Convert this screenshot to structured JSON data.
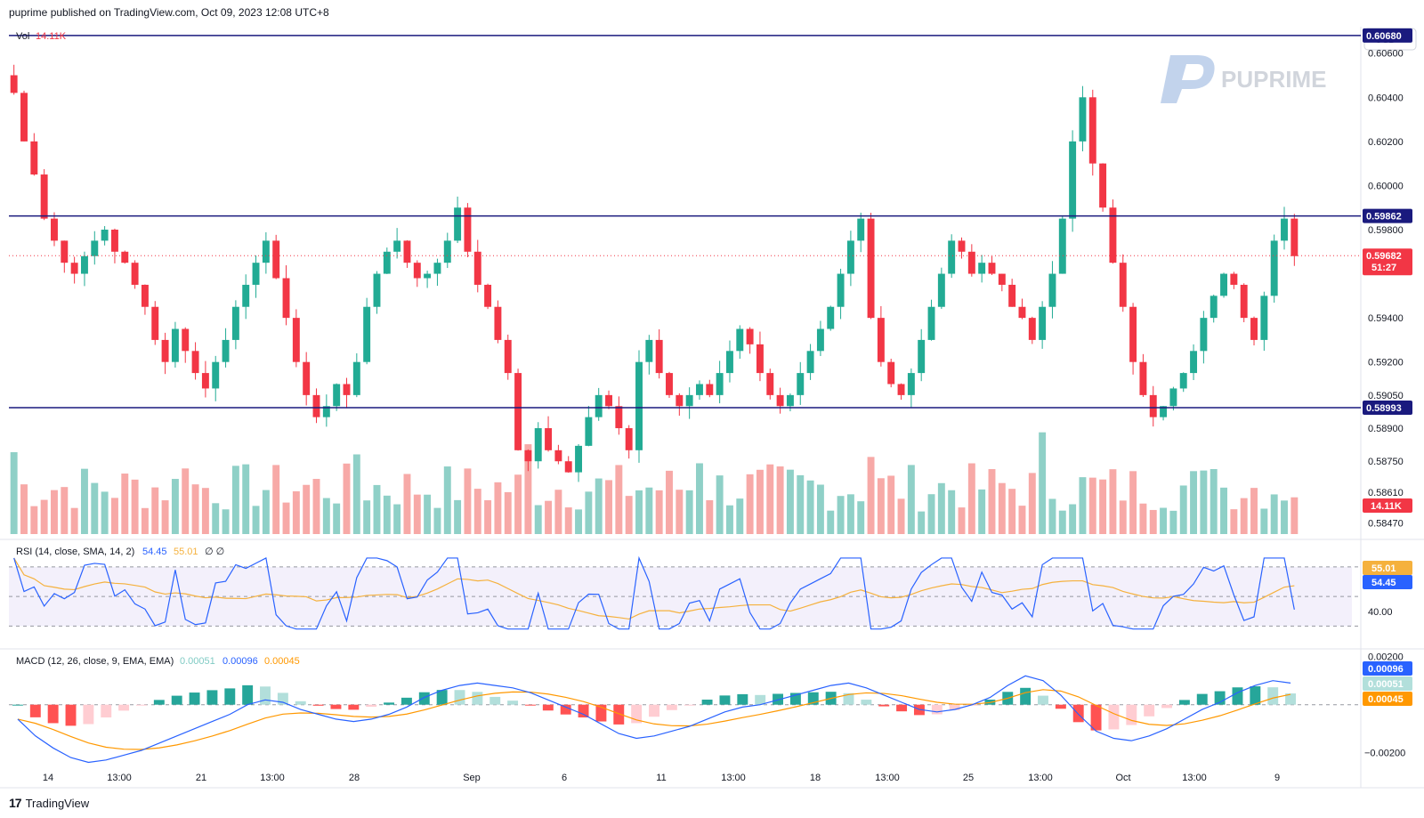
{
  "header": {
    "published_text": "puprime published on TradingView.com, Oct 09, 2023 12:08 UTC+8"
  },
  "footer": {
    "brand": "TradingView"
  },
  "watermark": {
    "text": "PUPRIME"
  },
  "currency": "USD",
  "colors": {
    "up": "#22ab94",
    "down": "#f23645",
    "up_vol": "#8fd0c7",
    "down_vol": "#f7a9a7",
    "hline": "#1a1a7e",
    "rsi": "#2962ff",
    "rsi_ma": "#f5b13d",
    "macd": "#2962ff",
    "signal": "#ff9800",
    "rsi_band": "#f3f0fb"
  },
  "chart_data": {
    "type": "candlestick",
    "title": "",
    "legend": {
      "vol_label": "Vol",
      "vol_value": "14.11K",
      "rsi_label": "RSI (14, close, SMA, 14, 2)",
      "rsi_value": "54.45",
      "rsi_ma_value": "55.01",
      "rsi_extra": "∅ ∅",
      "macd_label": "MACD (12, 26, close, 9, EMA, EMA)",
      "macd_hist_value": "0.00051",
      "macd_value": "0.00096",
      "signal_value": "0.00045"
    },
    "price_axis": {
      "ticks": [
        "0.60600",
        "0.60400",
        "0.60200",
        "0.60000",
        "0.59800",
        "0.59400",
        "0.59200",
        "0.59050",
        "0.58900",
        "0.58750",
        "0.58610",
        "0.58470"
      ],
      "ylim": [
        0.5842,
        0.6072
      ]
    },
    "horizontal_lines": [
      {
        "label": "0.60680",
        "value": 0.6068
      },
      {
        "label": "0.59862",
        "value": 0.59862
      },
      {
        "label": "0.58993",
        "value": 0.58993
      }
    ],
    "last_price": {
      "label": "0.59682",
      "countdown": "51:27",
      "value": 0.59682
    },
    "volume_tag": "14.11K",
    "rsi_axis": {
      "ticks": [
        "40.00"
      ],
      "ylim": [
        20,
        85
      ],
      "bands": [
        30,
        50,
        70
      ]
    },
    "rsi_tags": {
      "ma": "55.01",
      "rsi": "54.45"
    },
    "macd_axis": {
      "ticks": [
        "0.00200",
        "−0.00200"
      ],
      "ylim": [
        -0.0029,
        0.0021
      ]
    },
    "macd_tags": {
      "macd": "0.00096",
      "hist": "0.00051",
      "signal": "0.00045"
    },
    "time_axis": [
      "14",
      "13:00",
      "21",
      "13:00",
      "28",
      "Sep",
      "6",
      "11",
      "13:00",
      "18",
      "13:00",
      "25",
      "13:00",
      "Oct",
      "13:00",
      "9"
    ],
    "close_series": [
      0.6042,
      0.602,
      0.6005,
      0.5985,
      0.5975,
      0.5965,
      0.596,
      0.5968,
      0.5975,
      0.598,
      0.597,
      0.5965,
      0.5955,
      0.5945,
      0.593,
      0.592,
      0.5935,
      0.5925,
      0.5915,
      0.5908,
      0.592,
      0.593,
      0.5945,
      0.5955,
      0.5965,
      0.5975,
      0.5958,
      0.594,
      0.592,
      0.5905,
      0.5895,
      0.59,
      0.591,
      0.5905,
      0.592,
      0.5945,
      0.596,
      0.597,
      0.5975,
      0.5965,
      0.5958,
      0.596,
      0.5965,
      0.5975,
      0.599,
      0.597,
      0.5955,
      0.5945,
      0.593,
      0.5915,
      0.588,
      0.5875,
      0.589,
      0.588,
      0.5875,
      0.587,
      0.5882,
      0.5895,
      0.5905,
      0.59,
      0.589,
      0.588,
      0.592,
      0.593,
      0.5915,
      0.5905,
      0.59,
      0.5905,
      0.591,
      0.5905,
      0.5915,
      0.5925,
      0.5935,
      0.5928,
      0.5915,
      0.5905,
      0.59,
      0.5905,
      0.5915,
      0.5925,
      0.5935,
      0.5945,
      0.596,
      0.5975,
      0.5985,
      0.594,
      0.592,
      0.591,
      0.5905,
      0.5915,
      0.593,
      0.5945,
      0.596,
      0.5975,
      0.597,
      0.596,
      0.5965,
      0.596,
      0.5955,
      0.5945,
      0.594,
      0.593,
      0.5945,
      0.596,
      0.5985,
      0.602,
      0.604,
      0.601,
      0.599,
      0.5965,
      0.5945,
      0.592,
      0.5905,
      0.5895,
      0.59,
      0.5908,
      0.5915,
      0.5925,
      0.594,
      0.595,
      0.596,
      0.5955,
      0.594,
      0.593,
      0.595,
      0.5975,
      0.5985,
      0.5968
    ],
    "macd_series": [
      -0.0006,
      -0.0013,
      -0.0018,
      -0.0022,
      -0.0024,
      -0.0023,
      -0.0021,
      -0.0019,
      -0.0016,
      -0.0013,
      -0.001,
      -0.0007,
      -0.0004,
      0.0,
      0.0002,
      0.0001,
      -0.0002,
      -0.0004,
      -0.0006,
      -0.0007,
      -0.0006,
      -0.0004,
      -0.0001,
      0.0003,
      0.0006,
      0.0008,
      0.0009,
      0.0008,
      0.0007,
      0.0005,
      0.0002,
      -0.0001,
      -0.0004,
      -0.0008,
      -0.0012,
      -0.0014,
      -0.0013,
      -0.0011,
      -0.0009,
      -0.0006,
      -0.0003,
      -0.0001,
      0.0,
      0.0002,
      0.0004,
      0.0006,
      0.0008,
      0.0009,
      0.0007,
      0.0004,
      0.0001,
      -0.0002,
      -0.0003,
      -0.0002,
      0.0,
      0.0003,
      0.0008,
      0.0012,
      0.001,
      0.0004,
      -0.0004,
      -0.0011,
      -0.0014,
      -0.0015,
      -0.0013,
      -0.001,
      -0.0006,
      -0.0002,
      0.0001,
      0.0005,
      0.0008,
      0.001,
      0.0009
    ]
  }
}
